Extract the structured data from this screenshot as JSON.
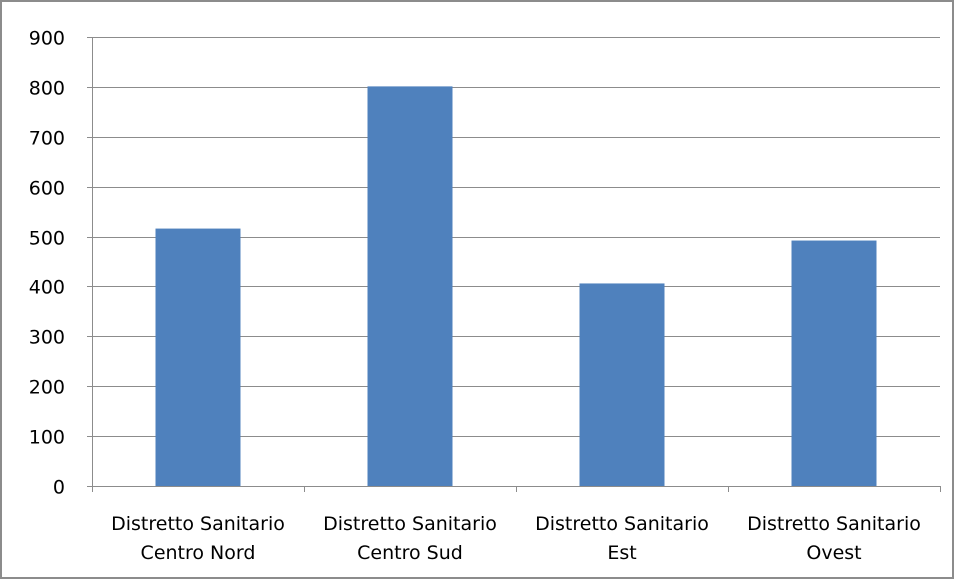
{
  "chart_data": {
    "type": "bar",
    "title": "",
    "xlabel": "",
    "ylabel": "",
    "categories": [
      [
        "Distretto Sanitario",
        "Centro Nord"
      ],
      [
        "Distretto Sanitario",
        "Centro Sud"
      ],
      [
        "Distretto Sanitario",
        "Est"
      ],
      [
        "Distretto Sanitario",
        "Ovest"
      ]
    ],
    "values": [
      516,
      801,
      406,
      492
    ],
    "ylim": [
      0,
      900
    ],
    "yticks": [
      "0",
      "100",
      "200",
      "300",
      "400",
      "500",
      "600",
      "700",
      "800",
      "900"
    ],
    "grid": true,
    "legend": "none",
    "colors": {
      "bar": "#4f81bd",
      "grid": "#8c8c8c",
      "axis": "#8c8c8c"
    }
  }
}
